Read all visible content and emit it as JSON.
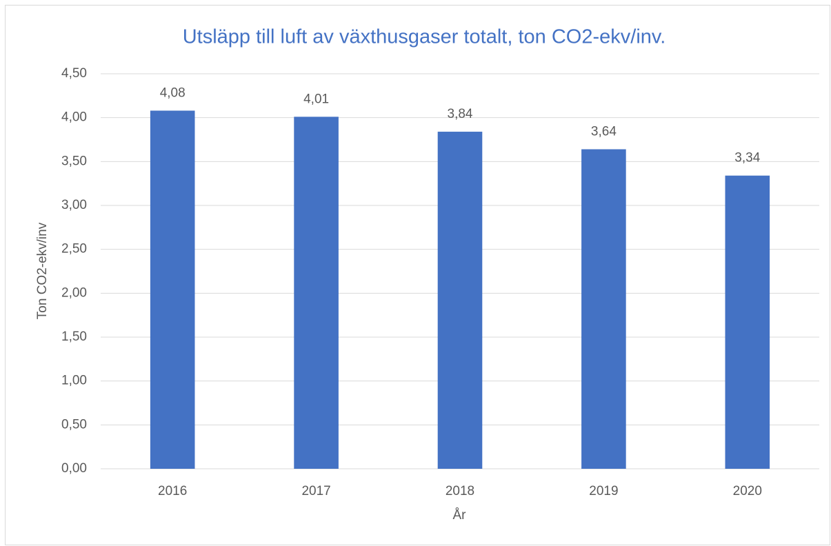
{
  "chart_data": {
    "type": "bar",
    "title": "Utsläpp till luft av växthusgaser totalt, ton CO2-ekv/inv.",
    "x_label": "År",
    "y_label": "Ton CO2-ekv/inv",
    "categories": [
      "2016",
      "2017",
      "2018",
      "2019",
      "2020"
    ],
    "values": [
      4.08,
      4.01,
      3.84,
      3.64,
      3.34
    ],
    "value_labels": [
      "4,08",
      "4,01",
      "3,84",
      "3,64",
      "3,34"
    ],
    "color": "#4472c4",
    "ylim": [
      0,
      4.5
    ],
    "yticks": [
      {
        "value": 0,
        "label": "0,00"
      },
      {
        "value": 0.5,
        "label": "0,50"
      },
      {
        "value": 1,
        "label": "1,00"
      },
      {
        "value": 1.5,
        "label": "1,50"
      },
      {
        "value": 2,
        "label": "2,00"
      },
      {
        "value": 2.5,
        "label": "2,50"
      },
      {
        "value": 3,
        "label": "3,00"
      },
      {
        "value": 3.5,
        "label": "3,50"
      },
      {
        "value": 4,
        "label": "4,00"
      },
      {
        "value": 4.5,
        "label": "4,50"
      }
    ],
    "grid": true
  }
}
